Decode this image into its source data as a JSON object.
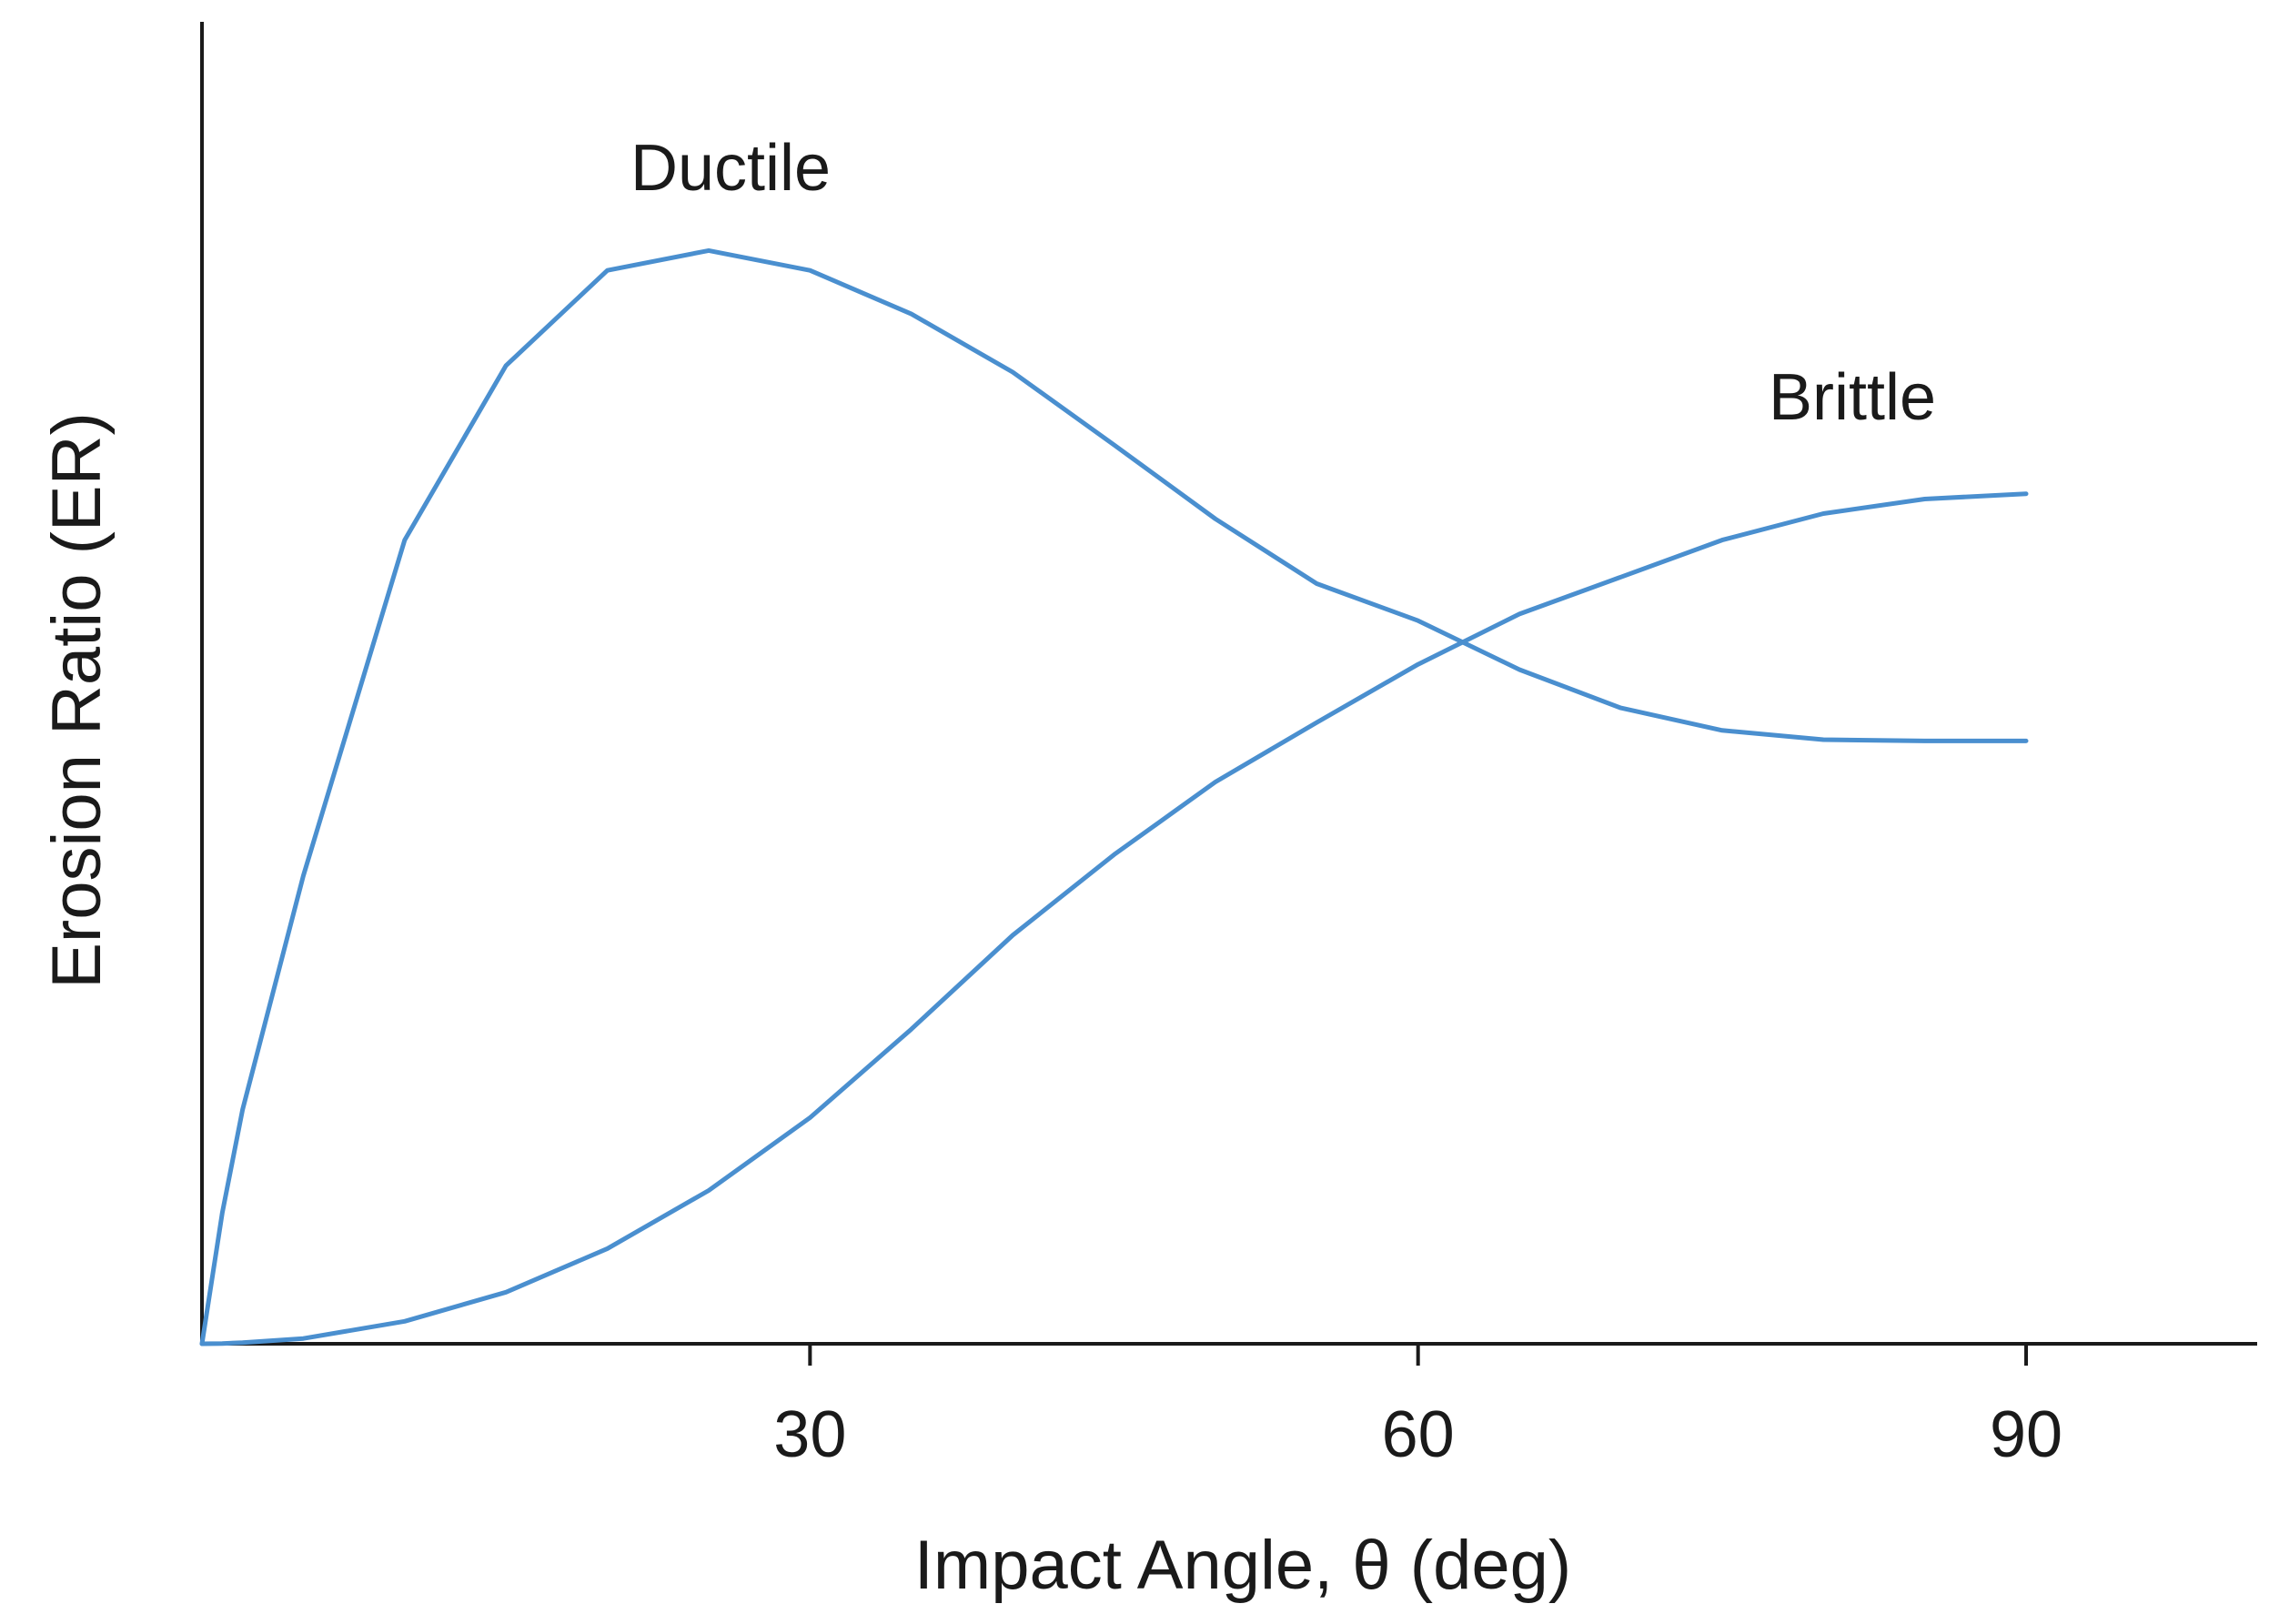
{
  "chart_data": {
    "type": "line",
    "x_label": "Impact Angle, θ (deg)",
    "y_label": "Erosion Ratio (ER)",
    "x": [
      0,
      1,
      2,
      5,
      10,
      15,
      20,
      25,
      30,
      35,
      40,
      45,
      50,
      55,
      60,
      65,
      70,
      75,
      80,
      85,
      90
    ],
    "series": [
      {
        "name": "Ductile",
        "color": "#4a8fcf",
        "values": [
          0,
          0.099,
          0.177,
          0.354,
          0.608,
          0.74,
          0.812,
          0.827,
          0.812,
          0.779,
          0.735,
          0.68,
          0.624,
          0.575,
          0.547,
          0.51,
          0.481,
          0.464,
          0.457,
          0.456,
          0.456
        ]
      },
      {
        "name": "Brittle",
        "color": "#4a8fcf",
        "values": [
          0,
          0.0002,
          0.0008,
          0.004,
          0.017,
          0.039,
          0.072,
          0.116,
          0.171,
          0.238,
          0.309,
          0.37,
          0.425,
          0.47,
          0.514,
          0.552,
          0.58,
          0.608,
          0.628,
          0.639,
          0.643
        ]
      }
    ],
    "xlim": [
      0,
      101.4
    ],
    "xticks": [
      30,
      60,
      90
    ],
    "ylim": [
      0,
      1
    ],
    "grid": false
  }
}
